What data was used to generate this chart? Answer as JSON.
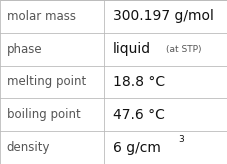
{
  "rows": [
    {
      "label": "molar mass",
      "value": "300.197 g/mol",
      "value_extra": null,
      "superscript": false
    },
    {
      "label": "phase",
      "value": "liquid",
      "value_extra": "(at STP)",
      "superscript": false
    },
    {
      "label": "melting point",
      "value": "18.8 °C",
      "value_extra": null,
      "superscript": false
    },
    {
      "label": "boiling point",
      "value": "47.6 °C",
      "value_extra": null,
      "superscript": false
    },
    {
      "label": "density",
      "value": "6 g/cm",
      "value_extra": "3",
      "superscript": true
    }
  ],
  "col_split": 0.455,
  "background": "#ffffff",
  "line_color": "#bbbbbb",
  "label_fontsize": 8.5,
  "value_fontsize": 10.0,
  "extra_fontsize": 6.5,
  "label_color": "#555555",
  "value_color": "#111111"
}
